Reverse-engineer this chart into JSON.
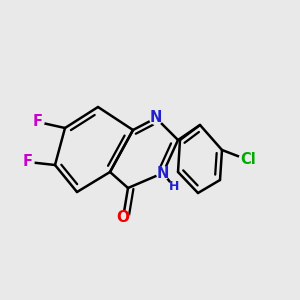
{
  "background_color": "#e9e9e9",
  "bond_color": "#000000",
  "bond_width": 1.8,
  "atom_labels": {
    "N1": {
      "symbol": "N",
      "color": "#2020cc",
      "fontsize": 10.5
    },
    "N3": {
      "symbol": "N",
      "color": "#2020cc",
      "fontsize": 10.5
    },
    "H3": {
      "symbol": "H",
      "color": "#2020cc",
      "fontsize": 9.0
    },
    "O4": {
      "symbol": "O",
      "color": "#ee0000",
      "fontsize": 11.0
    },
    "F6": {
      "symbol": "F",
      "color": "#cc00cc",
      "fontsize": 10.5
    },
    "F7": {
      "symbol": "F",
      "color": "#cc00cc",
      "fontsize": 10.5
    },
    "Cl": {
      "symbol": "Cl",
      "color": "#00aa00",
      "fontsize": 10.5
    }
  },
  "figsize": [
    3.0,
    3.0
  ],
  "dpi": 100
}
